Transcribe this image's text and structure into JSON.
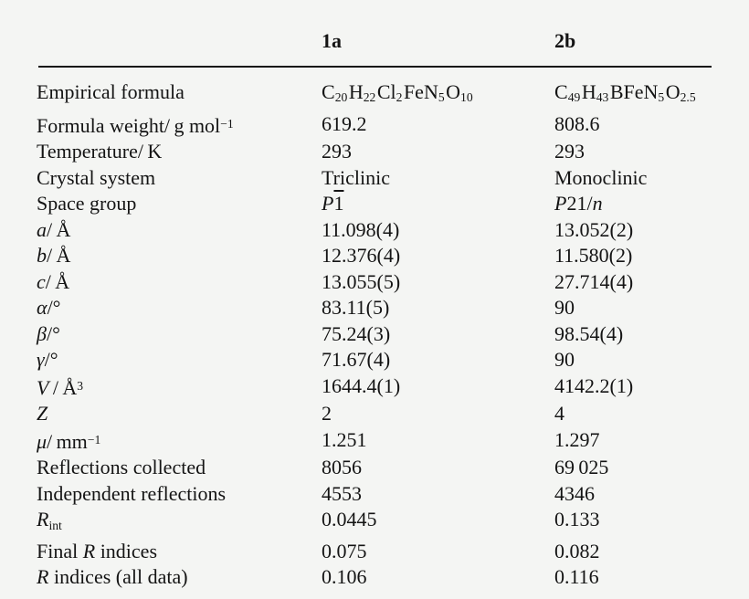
{
  "page": {
    "background_color": "#f4f5f3",
    "text_color": "#141414",
    "rule_color": "#141414",
    "description": "Crystallographic data table comparing compounds 1a and 2b"
  },
  "table": {
    "columns": [
      "",
      "1a",
      "2b"
    ],
    "rows": [
      {
        "label": [
          {
            "t": "Empirical formula"
          }
        ],
        "c1": [
          {
            "t": "C"
          },
          {
            "t": "20",
            "c": "sub"
          },
          {
            "t": "H"
          },
          {
            "t": "22",
            "c": "sub"
          },
          {
            "t": "Cl"
          },
          {
            "t": "2",
            "c": "sub"
          },
          {
            "t": "FeN"
          },
          {
            "t": "5",
            "c": "sub"
          },
          {
            "t": "O"
          },
          {
            "t": "10",
            "c": "sub"
          }
        ],
        "c2": [
          {
            "t": "C"
          },
          {
            "t": "49",
            "c": "sub"
          },
          {
            "t": "H"
          },
          {
            "t": "43",
            "c": "sub"
          },
          {
            "t": "BFeN"
          },
          {
            "t": "5",
            "c": "sub"
          },
          {
            "t": "O"
          },
          {
            "t": "2.5",
            "c": "sub"
          }
        ]
      },
      {
        "label": [
          {
            "t": "Formula weight/ g mol"
          },
          {
            "t": "−1",
            "c": "sup"
          }
        ],
        "c1": [
          {
            "t": "619.2"
          }
        ],
        "c2": [
          {
            "t": "808.6"
          }
        ]
      },
      {
        "label": [
          {
            "t": "Temperature/ K"
          }
        ],
        "c1": [
          {
            "t": "293"
          }
        ],
        "c2": [
          {
            "t": "293"
          }
        ]
      },
      {
        "label": [
          {
            "t": "Crystal system"
          }
        ],
        "c1": [
          {
            "t": "Triclinic"
          }
        ],
        "c2": [
          {
            "t": "Monoclinic"
          }
        ]
      },
      {
        "label": [
          {
            "t": "Space group"
          }
        ],
        "c1": [
          {
            "t": "P",
            "c": "i"
          },
          {
            "t": "1",
            "c": "over"
          }
        ],
        "c2": [
          {
            "t": "P",
            "c": "i"
          },
          {
            "t": "21/"
          },
          {
            "t": "n",
            "c": "i"
          }
        ]
      },
      {
        "label": [
          {
            "t": "a",
            "c": "i"
          },
          {
            "t": "/ Å"
          }
        ],
        "c1": [
          {
            "t": "11.098(4)"
          }
        ],
        "c2": [
          {
            "t": "13.052(2)"
          }
        ]
      },
      {
        "label": [
          {
            "t": "b",
            "c": "i"
          },
          {
            "t": "/ Å"
          }
        ],
        "c1": [
          {
            "t": "12.376(4)"
          }
        ],
        "c2": [
          {
            "t": "11.580(2)"
          }
        ]
      },
      {
        "label": [
          {
            "t": "c",
            "c": "i"
          },
          {
            "t": "/ Å"
          }
        ],
        "c1": [
          {
            "t": "13.055(5)"
          }
        ],
        "c2": [
          {
            "t": "27.714(4)"
          }
        ]
      },
      {
        "label": [
          {
            "t": "α",
            "c": "i"
          },
          {
            "t": "/°"
          }
        ],
        "c1": [
          {
            "t": "83.11(5)"
          }
        ],
        "c2": [
          {
            "t": "90"
          }
        ]
      },
      {
        "label": [
          {
            "t": "β",
            "c": "i"
          },
          {
            "t": "/°"
          }
        ],
        "c1": [
          {
            "t": "75.24(3)"
          }
        ],
        "c2": [
          {
            "t": "98.54(4)"
          }
        ]
      },
      {
        "label": [
          {
            "t": "γ",
            "c": "i"
          },
          {
            "t": "/°"
          }
        ],
        "c1": [
          {
            "t": "71.67(4)"
          }
        ],
        "c2": [
          {
            "t": "90"
          }
        ]
      },
      {
        "label": [
          {
            "t": "V",
            "c": "i"
          },
          {
            "t": " / Å"
          },
          {
            "t": "3",
            "c": "sup"
          }
        ],
        "c1": [
          {
            "t": "1644.4(1)"
          }
        ],
        "c2": [
          {
            "t": "4142.2(1)"
          }
        ]
      },
      {
        "label": [
          {
            "t": "Z",
            "c": "i"
          }
        ],
        "c1": [
          {
            "t": "2"
          }
        ],
        "c2": [
          {
            "t": "4"
          }
        ]
      },
      {
        "label": [
          {
            "t": "μ",
            "c": "i"
          },
          {
            "t": "/ mm"
          },
          {
            "t": "−1",
            "c": "sup"
          }
        ],
        "c1": [
          {
            "t": "1.251"
          }
        ],
        "c2": [
          {
            "t": "1.297"
          }
        ]
      },
      {
        "label": [
          {
            "t": "Reflections collected"
          }
        ],
        "c1": [
          {
            "t": "8056"
          }
        ],
        "c2": [
          {
            "t": "69 025"
          }
        ]
      },
      {
        "label": [
          {
            "t": "Independent reflections"
          }
        ],
        "c1": [
          {
            "t": "4553"
          }
        ],
        "c2": [
          {
            "t": "4346"
          }
        ]
      },
      {
        "label": [
          {
            "t": "R",
            "c": "i"
          },
          {
            "t": "int",
            "c": "sub"
          }
        ],
        "c1": [
          {
            "t": "0.0445"
          }
        ],
        "c2": [
          {
            "t": "0.133"
          }
        ]
      },
      {
        "label": [
          {
            "t": "Final "
          },
          {
            "t": "R",
            "c": "i"
          },
          {
            "t": " indices"
          }
        ],
        "c1": [
          {
            "t": "0.075"
          }
        ],
        "c2": [
          {
            "t": "0.082"
          }
        ]
      },
      {
        "label": [
          {
            "t": "R",
            "c": "i"
          },
          {
            "t": " indices (all data)"
          }
        ],
        "c1": [
          {
            "t": "0.106"
          }
        ],
        "c2": [
          {
            "t": "0.116"
          }
        ]
      }
    ]
  }
}
